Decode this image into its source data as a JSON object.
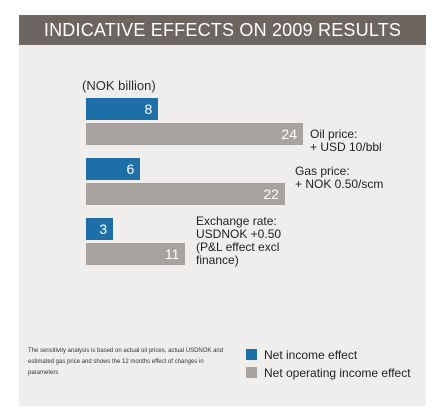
{
  "header": {
    "title": "INDICATIVE EFFECTS ON 2009 RESULTS"
  },
  "chart_data": {
    "type": "bar",
    "orientation": "horizontal",
    "title": "INDICATIVE EFFECTS ON 2009 RESULTS",
    "unit_label": "(NOK billion)",
    "categories": [
      "Oil price:\n+ USD 10/bbl",
      "Gas price:\n+ NOK 0.50/scm",
      "Exchange rate:\nUSDNOK +0.50\n(P&L effect excl\nfinance)"
    ],
    "series": [
      {
        "name": "Net income effect",
        "values": [
          8,
          6,
          3
        ],
        "color": "#1e6fa8"
      },
      {
        "name": "Net operating income effect",
        "values": [
          24,
          22,
          11
        ],
        "color": "#a8a39e"
      }
    ],
    "xlim": [
      0,
      24
    ],
    "legend_position": "bottom-right",
    "grid": false
  },
  "footnote": "The sensitivity analysis is based on actual  oil prices, actual USDNOK and estimated gas price and shows the 12 months effect of changes in parameters",
  "colors": {
    "header_bg": "#6d6560",
    "panel_bg": "#efeeec"
  }
}
